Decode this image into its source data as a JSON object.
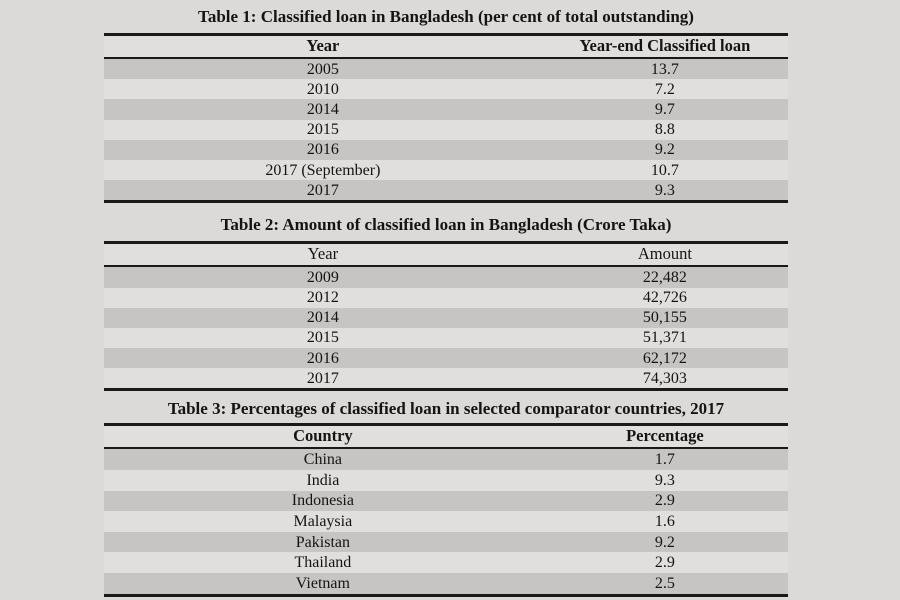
{
  "palette": {
    "page_background": "#dcdad9",
    "row_light": "#e1dfde",
    "row_stripe": "#c6c5c4",
    "rule_color": "#191919",
    "text_color": "#141414"
  },
  "tables": [
    {
      "title": "Table 1: Classified loan in Bangladesh (per cent of total outstanding)",
      "columns": [
        "Year",
        "Year-end Classified loan"
      ],
      "header_bold": true,
      "rows": [
        [
          "2005",
          "13.7"
        ],
        [
          "2010",
          "7.2"
        ],
        [
          "2014",
          "9.7"
        ],
        [
          "2015",
          "8.8"
        ],
        [
          "2016",
          "9.2"
        ],
        [
          "2017 (September)",
          "10.7"
        ],
        [
          "2017",
          "9.3"
        ]
      ]
    },
    {
      "title": "Table 2: Amount of classified loan in Bangladesh (Crore Taka)",
      "columns": [
        "Year",
        "Amount"
      ],
      "header_bold": false,
      "rows": [
        [
          "2009",
          "22,482"
        ],
        [
          "2012",
          "42,726"
        ],
        [
          "2014",
          "50,155"
        ],
        [
          "2015",
          "51,371"
        ],
        [
          "2016",
          "62,172"
        ],
        [
          "2017",
          "74,303"
        ]
      ]
    },
    {
      "title": "Table 3: Percentages of classified loan in selected comparator countries, 2017",
      "columns": [
        "Country",
        "Percentage"
      ],
      "header_bold": true,
      "rows": [
        [
          "China",
          "1.7"
        ],
        [
          "India",
          "9.3"
        ],
        [
          "Indonesia",
          "2.9"
        ],
        [
          "Malaysia",
          "1.6"
        ],
        [
          "Pakistan",
          "9.2"
        ],
        [
          "Thailand",
          "2.9"
        ],
        [
          "Vietnam",
          "2.5"
        ]
      ]
    }
  ]
}
